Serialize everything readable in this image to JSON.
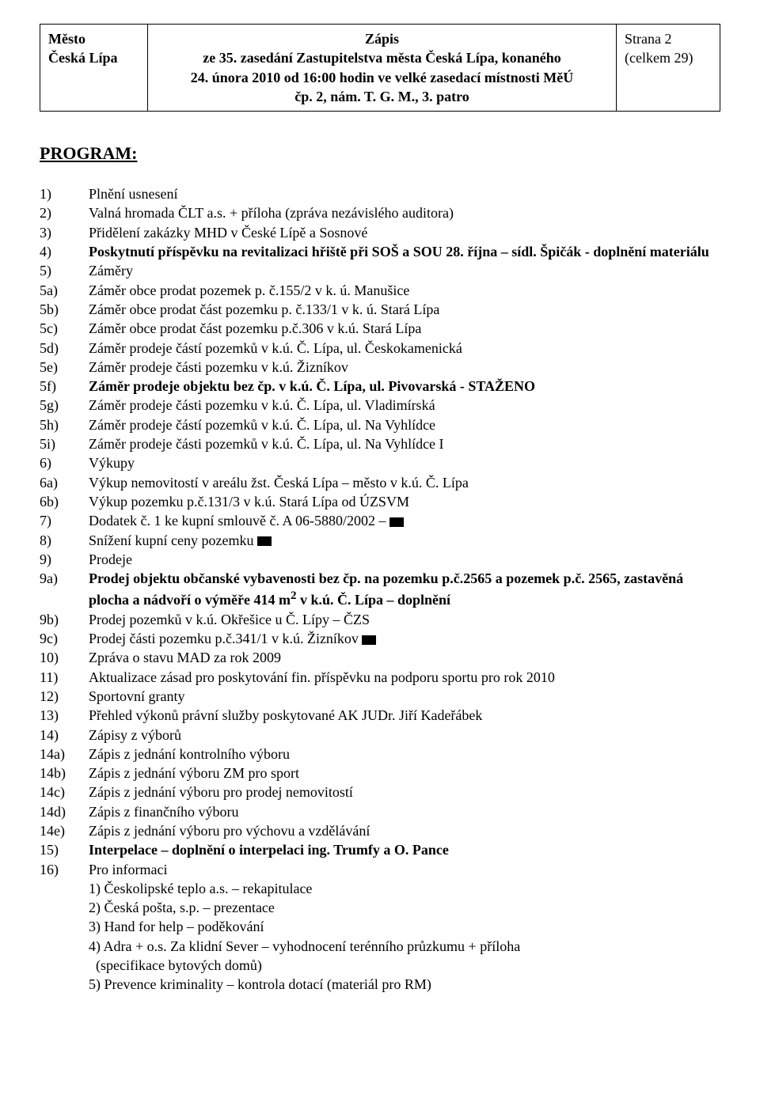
{
  "header": {
    "left_line1": "Město",
    "left_line2": "Česká Lípa",
    "center_title": "Zápis",
    "center_line2": "ze 35. zasedání Zastupitelstva města Česká Lípa, konaného",
    "center_line3": "24. února 2010 od 16:00 hodin ve velké zasedací místnosti MěÚ",
    "center_line4": "čp. 2, nám. T. G. M., 3. patro",
    "right_line1": "Strana 2",
    "right_line2": "(celkem 29)"
  },
  "program_heading": "PROGRAM:",
  "items": [
    {
      "num": "1)",
      "text": "Plnění usnesení"
    },
    {
      "num": "2)",
      "text": "Valná hromada ČLT a.s. + příloha (zpráva nezávislého auditora)"
    },
    {
      "num": "3)",
      "text": "Přidělení zakázky MHD v České Lípě a Sosnové"
    },
    {
      "num": "4)",
      "text_bold": "Poskytnutí příspěvku na revitalizaci hřiště při SOŠ a SOU 28. října – sídl. Špičák - doplnění materiálu"
    },
    {
      "num": "5)",
      "text": "Záměry"
    },
    {
      "num": "5a)",
      "text": "Záměr obce prodat pozemek p. č.155/2 v k. ú. Manušice"
    },
    {
      "num": "5b)",
      "text": "Záměr obce prodat část pozemku p. č.133/1 v k. ú. Stará Lípa"
    },
    {
      "num": "5c)",
      "text": "Záměr obce prodat část pozemku p.č.306 v k.ú. Stará Lípa"
    },
    {
      "num": "5d)",
      "text": "Záměr prodeje částí pozemků v k.ú. Č. Lípa, ul. Českokamenická"
    },
    {
      "num": "5e)",
      "text": "Záměr prodeje části pozemku v k.ú. Žizníkov"
    },
    {
      "num": "5f)",
      "text_bold": "Záměr prodeje objektu bez čp. v k.ú. Č. Lípa, ul. Pivovarská - STAŽENO"
    },
    {
      "num": "5g)",
      "text": "Záměr prodeje části pozemku v k.ú. Č. Lípa, ul. Vladimírská"
    },
    {
      "num": "5h)",
      "text": "Záměr prodeje částí pozemků v k.ú. Č. Lípa, ul. Na Vyhlídce"
    },
    {
      "num": "5i)",
      "text": "Záměr prodeje části pozemků v k.ú. Č. Lípa, ul. Na Vyhlídce I"
    },
    {
      "num": "6)",
      "text": "Výkupy"
    },
    {
      "num": "6a)",
      "text": "Výkup nemovitostí v areálu žst. Česká Lípa – město v k.ú. Č. Lípa"
    },
    {
      "num": "6b)",
      "text": "Výkup pozemku p.č.131/3 v k.ú. Stará Lípa od ÚZSVM"
    },
    {
      "num": "7)",
      "text": "Dodatek č. 1 ke kupní smlouvě č. A 06-5880/2002 – ",
      "redact": true
    },
    {
      "num": "8)",
      "text": "Snížení kupní ceny pozemku ",
      "redact": true
    },
    {
      "num": "9)",
      "text": "Prodeje"
    },
    {
      "num": "9a)",
      "text_bold_html": "Prodej objektu občanské vybavenosti bez čp. na pozemku p.č.2565 a pozemek p.č. 2565, zastavěná plocha a nádvoří o výměře 414 m<sup>2</sup> v k.ú. Č. Lípa – doplnění"
    },
    {
      "num": "9b)",
      "text": "Prodej pozemků v k.ú. Okřešice u Č. Lípy – ČZS"
    },
    {
      "num": "9c)",
      "text": "Prodej části pozemku p.č.341/1 v k.ú. Žizníkov ",
      "redact": true
    },
    {
      "num": "10)",
      "text": "Zpráva o stavu MAD za rok 2009"
    },
    {
      "num": "11)",
      "text": "Aktualizace zásad pro poskytování fin. příspěvku na podporu sportu pro rok 2010"
    },
    {
      "num": "12)",
      "text": "Sportovní granty"
    },
    {
      "num": "13)",
      "text": "Přehled výkonů právní služby poskytované AK JUDr. Jiří Kadeřábek"
    },
    {
      "num": "14)",
      "text": "Zápisy z výborů"
    },
    {
      "num": "14a)",
      "text": "Zápis z jednání kontrolního výboru"
    },
    {
      "num": "14b)",
      "text": "Zápis z jednání výboru ZM pro sport"
    },
    {
      "num": "14c)",
      "text": "Zápis z jednání výboru pro prodej nemovitostí"
    },
    {
      "num": "14d)",
      "text": "Zápis z finančního výboru"
    },
    {
      "num": "14e)",
      "text": "Zápis z jednání výboru pro výchovu a vzdělávání"
    },
    {
      "num": "15)",
      "text_bold": "Interpelace – doplnění o interpelaci ing. Trumfy a O. Pance"
    },
    {
      "num": "16)",
      "text": "Pro informaci"
    }
  ],
  "sub16": [
    "1) Českolipské teplo a.s. – rekapitulace",
    "2) Česká pošta, s.p. – prezentace",
    "3) Hand for help – poděkování",
    "4) Adra + o.s. Za klidní Sever – vyhodnocení terénního průzkumu + příloha",
    "  (specifikace bytových domů)",
    "5) Prevence kriminality – kontrola dotací (materiál pro RM)"
  ]
}
